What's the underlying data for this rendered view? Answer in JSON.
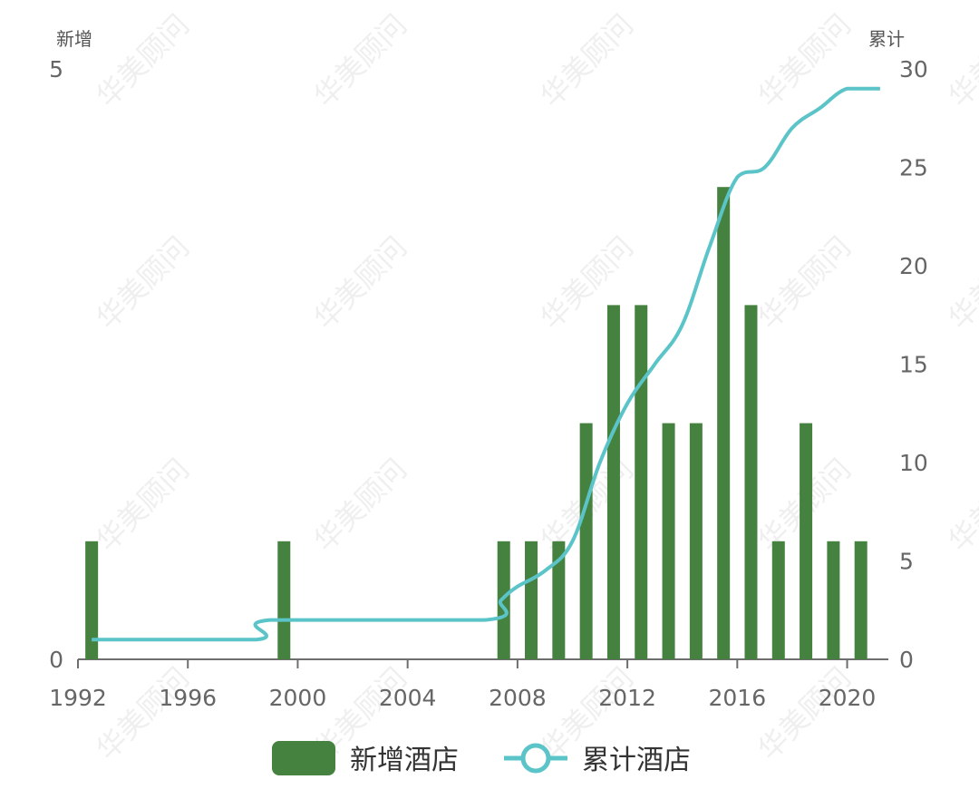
{
  "watermark": "华美顾问",
  "chart_data": {
    "type": "bar",
    "x_axis": {
      "min": 1992,
      "max": 2021.5,
      "ticks": [
        1992,
        1996,
        2000,
        2004,
        2008,
        2012,
        2016,
        2020
      ]
    },
    "y_left": {
      "name": "新增",
      "min": 0,
      "max": 5,
      "ticks": [
        0,
        5
      ]
    },
    "y_right": {
      "name": "累计",
      "min": 0,
      "max": 30,
      "ticks": [
        0,
        5,
        10,
        15,
        20,
        25,
        30
      ]
    },
    "series": [
      {
        "name": "新增酒店",
        "type": "bar",
        "axis": "left",
        "color": "#45813f",
        "points": [
          [
            1992.5,
            1
          ],
          [
            1999.5,
            1
          ],
          [
            2007.5,
            1
          ],
          [
            2008.5,
            1
          ],
          [
            2009.5,
            1
          ],
          [
            2010.5,
            2
          ],
          [
            2011.5,
            3
          ],
          [
            2012.5,
            3
          ],
          [
            2013.5,
            2
          ],
          [
            2014.5,
            2
          ],
          [
            2015.5,
            4
          ],
          [
            2016.5,
            3
          ],
          [
            2017.5,
            1
          ],
          [
            2018.5,
            2
          ],
          [
            2019.5,
            1
          ],
          [
            2020.5,
            1
          ]
        ]
      },
      {
        "name": "累计酒店",
        "type": "line",
        "axis": "right",
        "color": "#5bc4c8",
        "points": [
          [
            1992.5,
            1
          ],
          [
            1998.5,
            1
          ],
          [
            1999,
            2
          ],
          [
            2006.8,
            2
          ],
          [
            2007.4,
            3
          ],
          [
            2008,
            3.7
          ],
          [
            2009,
            4.5
          ],
          [
            2010,
            6
          ],
          [
            2011,
            10
          ],
          [
            2012,
            13
          ],
          [
            2013,
            15
          ],
          [
            2014,
            17
          ],
          [
            2015,
            21
          ],
          [
            2016,
            24.5
          ],
          [
            2017,
            25
          ],
          [
            2018,
            27
          ],
          [
            2019,
            28
          ],
          [
            2020,
            29
          ],
          [
            2021.2,
            29
          ]
        ]
      }
    ],
    "legend": {
      "position": "bottom"
    }
  }
}
